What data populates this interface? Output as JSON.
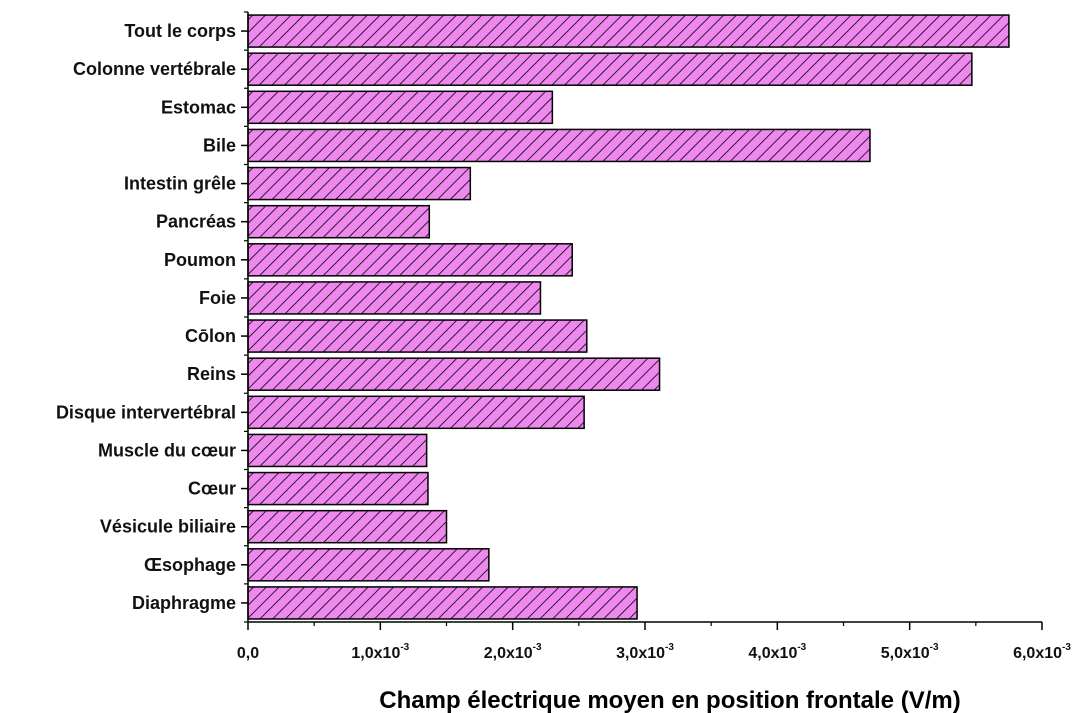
{
  "chart_data": {
    "type": "bar",
    "orientation": "horizontal",
    "categories": [
      "Tout le corps",
      "Colonne vertébrale",
      "Estomac",
      "Bile",
      "Intestin grêle",
      "Pancréas",
      "Poumon",
      "Foie",
      "Cōlon",
      "Reins",
      "Disque intervertébral",
      "Muscle du cœur",
      "Cœur",
      "Vésicule biliaire",
      "Œsophage",
      "Diaphragme"
    ],
    "values": [
      0.00575,
      0.00547,
      0.0023,
      0.0047,
      0.00168,
      0.00137,
      0.00245,
      0.00221,
      0.00256,
      0.00311,
      0.00254,
      0.00135,
      0.00136,
      0.0015,
      0.00182,
      0.00294
    ],
    "xlabel": "Champ électrique moyen en position frontale (V/m)",
    "ylabel": "",
    "title": "",
    "xlim": [
      0,
      0.006
    ],
    "xticks": [
      {
        "value": 0,
        "label": "0,0",
        "exp": ""
      },
      {
        "value": 0.001,
        "label": "1,0x10",
        "exp": "-3"
      },
      {
        "value": 0.002,
        "label": "2,0x10",
        "exp": "-3"
      },
      {
        "value": 0.003,
        "label": "3,0x10",
        "exp": "-3"
      },
      {
        "value": 0.004,
        "label": "4,0x10",
        "exp": "-3"
      },
      {
        "value": 0.005,
        "label": "5,0x10",
        "exp": "-3"
      },
      {
        "value": 0.006,
        "label": "6,0x10",
        "exp": "-3"
      }
    ],
    "grid": false,
    "bar_color": "#ee88ee",
    "hatch_color": "#000000"
  }
}
